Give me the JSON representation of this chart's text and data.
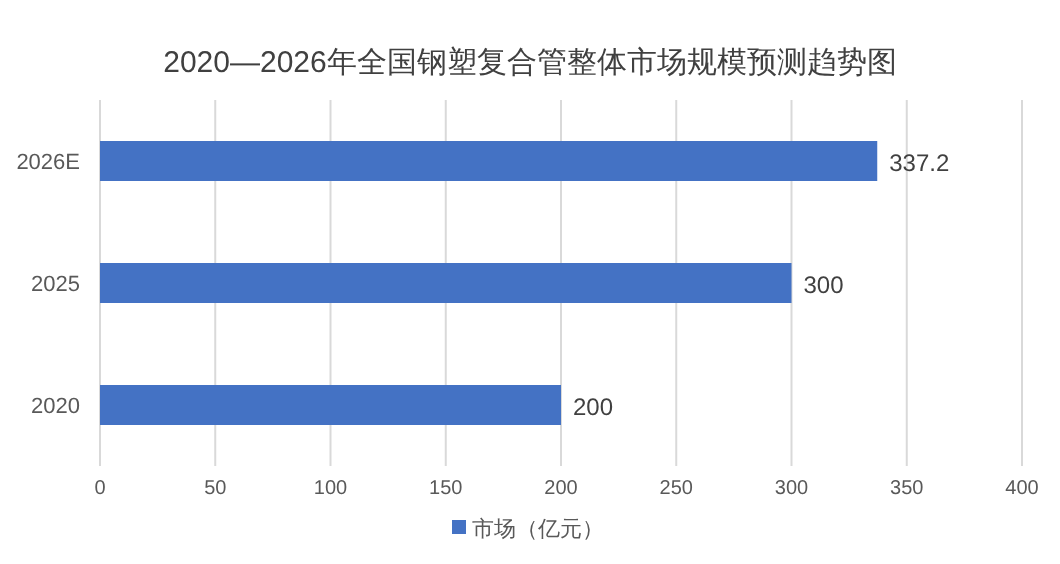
{
  "chart_data": {
    "type": "bar",
    "orientation": "horizontal",
    "title": "2020—2026年全国钢塑复合管整体市场规模预测趋势图",
    "categories": [
      "2026E",
      "2025",
      "2020"
    ],
    "series": [
      {
        "name": "市场（亿元）",
        "color": "#4472c4",
        "values": [
          337.2,
          300,
          200
        ]
      }
    ],
    "xlim": [
      0,
      400
    ],
    "xticks": [
      0,
      50,
      100,
      150,
      200,
      250,
      300,
      350,
      400
    ],
    "grid": "x",
    "legend": "bottom",
    "data_labels": true
  }
}
